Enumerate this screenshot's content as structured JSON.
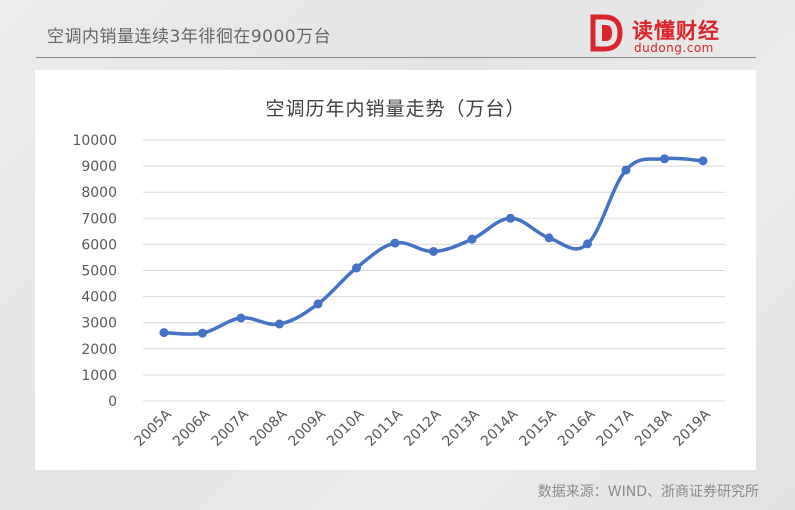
{
  "header": {
    "title": "空调内销量连续3年徘徊在9000万台",
    "logo_text": "读懂财经",
    "logo_sub": "dudong.com"
  },
  "footer": {
    "source": "数据来源：WIND、浙商证券研究所"
  },
  "colors": {
    "series": "#4472c4",
    "brand": "#d8262c",
    "grid": "#d9d9d9"
  },
  "chart_data": {
    "type": "line",
    "title": "空调历年内销量走势（万台）",
    "xlabel": "",
    "ylabel": "",
    "categories": [
      "2005A",
      "2006A",
      "2007A",
      "2008A",
      "2009A",
      "2010A",
      "2011A",
      "2012A",
      "2013A",
      "2014A",
      "2015A",
      "2016A",
      "2017A",
      "2018A",
      "2019A"
    ],
    "series": [
      {
        "values": [
          2620,
          2600,
          3180,
          2950,
          3720,
          5100,
          6050,
          5730,
          6200,
          7000,
          6250,
          6020,
          8850,
          9280,
          9200
        ]
      }
    ],
    "ylim": [
      0,
      10000
    ],
    "yticks": [
      0,
      1000,
      2000,
      3000,
      4000,
      5000,
      6000,
      7000,
      8000,
      9000,
      10000
    ],
    "grid": true,
    "smooth": true,
    "markers": true,
    "legend": "none"
  }
}
